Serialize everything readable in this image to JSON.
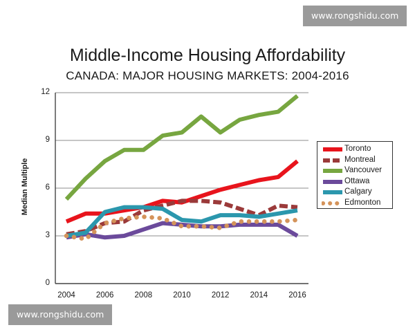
{
  "watermark": {
    "top": "www.rongshidu.com",
    "bottom": "www.rongshidu.com"
  },
  "chart_data": {
    "type": "line",
    "title": "Middle-Income Housing Affordability",
    "subtitle": "CANADA: MAJOR HOUSING MARKETS: 2004-2016",
    "xlabel": "",
    "ylabel": "Median Multiple",
    "x": [
      2004,
      2005,
      2006,
      2007,
      2008,
      2009,
      2010,
      2011,
      2012,
      2013,
      2014,
      2015,
      2016
    ],
    "xticks": [
      "2004",
      "2006",
      "2008",
      "2010",
      "2012",
      "2014",
      "2016"
    ],
    "yticks": [
      "0",
      "3",
      "6",
      "9",
      "12"
    ],
    "ylim": [
      0,
      12
    ],
    "grid": "horizontal",
    "legend_position": "right",
    "series": [
      {
        "name": "Toronto",
        "color": "#e8141c",
        "style": "solid",
        "values": [
          3.9,
          4.4,
          4.4,
          4.6,
          4.8,
          5.2,
          5.1,
          5.5,
          5.9,
          6.2,
          6.5,
          6.7,
          7.7
        ]
      },
      {
        "name": "Montreal",
        "color": "#9b3a3a",
        "style": "dashed",
        "values": [
          3.1,
          3.3,
          3.8,
          3.9,
          4.6,
          4.9,
          5.2,
          5.2,
          5.1,
          4.7,
          4.3,
          4.9,
          4.8
        ]
      },
      {
        "name": "Vancouver",
        "color": "#77a640",
        "style": "solid",
        "values": [
          5.3,
          6.6,
          7.7,
          8.4,
          8.4,
          9.3,
          9.5,
          10.5,
          9.5,
          10.3,
          10.6,
          10.8,
          11.8
        ]
      },
      {
        "name": "Ottawa",
        "color": "#6b4a9b",
        "style": "solid",
        "values": [
          2.9,
          3.1,
          2.9,
          3.0,
          3.4,
          3.8,
          3.7,
          3.6,
          3.6,
          3.7,
          3.7,
          3.7,
          3.0
        ]
      },
      {
        "name": "Calgary",
        "color": "#2b97ad",
        "style": "solid",
        "values": [
          3.0,
          3.2,
          4.5,
          4.8,
          4.8,
          4.7,
          4.0,
          3.9,
          4.3,
          4.3,
          4.2,
          4.4,
          4.6
        ]
      },
      {
        "name": "Edmonton",
        "color": "#d4935a",
        "style": "dotted",
        "values": [
          3.0,
          2.8,
          3.8,
          4.1,
          4.2,
          4.1,
          3.6,
          3.6,
          3.5,
          3.9,
          3.9,
          3.9,
          4.0
        ]
      }
    ]
  }
}
